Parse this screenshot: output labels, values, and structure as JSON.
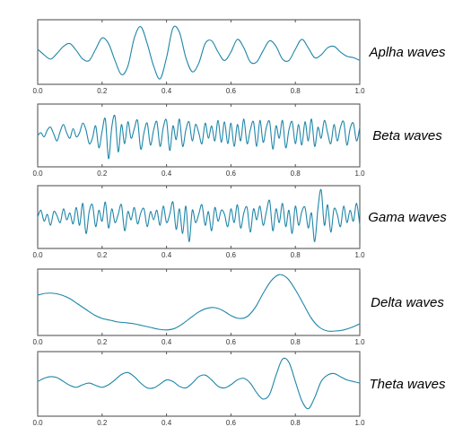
{
  "chart_data": [
    {
      "type": "line",
      "label": "Aplha waves",
      "color": "#1f86a8",
      "xlim": [
        0,
        1
      ],
      "x_ticks": [
        "0.0",
        "0.2",
        "0.4",
        "0.6",
        "0.8",
        "1.0"
      ],
      "x": [
        0.0,
        0.02,
        0.04,
        0.06,
        0.08,
        0.1,
        0.12,
        0.14,
        0.16,
        0.18,
        0.2,
        0.22,
        0.24,
        0.26,
        0.28,
        0.3,
        0.32,
        0.34,
        0.36,
        0.38,
        0.4,
        0.42,
        0.44,
        0.46,
        0.48,
        0.5,
        0.52,
        0.54,
        0.56,
        0.58,
        0.6,
        0.62,
        0.64,
        0.66,
        0.68,
        0.7,
        0.72,
        0.74,
        0.76,
        0.78,
        0.8,
        0.82,
        0.84,
        0.86,
        0.88,
        0.9,
        0.92,
        0.94,
        0.96,
        0.98,
        1.0
      ],
      "y": [
        0.1,
        -0.1,
        -0.25,
        -0.05,
        0.2,
        0.3,
        0.05,
        -0.25,
        -0.3,
        0.1,
        0.5,
        0.3,
        -0.3,
        -0.8,
        -0.5,
        0.5,
        0.9,
        0.3,
        -0.5,
        -0.95,
        -0.2,
        0.85,
        0.7,
        -0.2,
        -0.7,
        -0.4,
        0.3,
        0.4,
        0.0,
        -0.3,
        0.0,
        0.45,
        0.15,
        -0.35,
        -0.35,
        0.05,
        0.4,
        0.2,
        -0.25,
        -0.3,
        0.1,
        0.45,
        0.15,
        -0.2,
        -0.1,
        0.15,
        0.2,
        0.0,
        -0.15,
        -0.2,
        -0.3
      ],
      "ylim": [
        -1.05,
        1.05
      ]
    },
    {
      "type": "line",
      "label": "Beta waves",
      "color": "#1f86a8",
      "xlim": [
        0,
        1
      ],
      "x_ticks": [
        "0.0",
        "0.2",
        "0.4",
        "0.6",
        "0.8",
        "1.0"
      ],
      "x": [
        0.0,
        0.01,
        0.02,
        0.03,
        0.04,
        0.05,
        0.06,
        0.07,
        0.08,
        0.09,
        0.1,
        0.11,
        0.12,
        0.13,
        0.14,
        0.15,
        0.16,
        0.17,
        0.18,
        0.19,
        0.2,
        0.21,
        0.22,
        0.23,
        0.24,
        0.25,
        0.26,
        0.27,
        0.28,
        0.29,
        0.3,
        0.31,
        0.32,
        0.33,
        0.34,
        0.35,
        0.36,
        0.37,
        0.38,
        0.39,
        0.4,
        0.41,
        0.42,
        0.43,
        0.44,
        0.45,
        0.46,
        0.47,
        0.48,
        0.49,
        0.5,
        0.51,
        0.52,
        0.53,
        0.54,
        0.55,
        0.56,
        0.57,
        0.58,
        0.59,
        0.6,
        0.61,
        0.62,
        0.63,
        0.64,
        0.65,
        0.66,
        0.67,
        0.68,
        0.69,
        0.7,
        0.71,
        0.72,
        0.73,
        0.74,
        0.75,
        0.76,
        0.77,
        0.78,
        0.79,
        0.8,
        0.81,
        0.82,
        0.83,
        0.84,
        0.85,
        0.86,
        0.87,
        0.88,
        0.89,
        0.9,
        0.91,
        0.92,
        0.93,
        0.94,
        0.95,
        0.96,
        0.97,
        0.98,
        0.99,
        1.0
      ],
      "y": [
        0.0,
        0.1,
        -0.05,
        0.2,
        0.3,
        0.05,
        -0.2,
        0.15,
        0.4,
        0.1,
        -0.1,
        0.25,
        -0.05,
        0.1,
        0.45,
        0.2,
        -0.3,
        -0.1,
        0.35,
        -0.45,
        0.15,
        0.6,
        -0.85,
        0.3,
        0.7,
        -0.6,
        0.4,
        -0.3,
        0.5,
        -0.1,
        0.25,
        0.55,
        -0.5,
        0.1,
        0.45,
        -0.35,
        0.2,
        0.5,
        -0.4,
        0.3,
        0.55,
        -0.55,
        0.35,
        -0.15,
        0.6,
        -0.4,
        0.2,
        0.5,
        -0.2,
        0.4,
        0.1,
        -0.3,
        0.45,
        -0.1,
        0.35,
        -0.2,
        0.55,
        -0.25,
        0.5,
        -0.3,
        0.45,
        -0.4,
        0.4,
        -0.2,
        0.6,
        -0.3,
        0.2,
        0.5,
        -0.4,
        0.55,
        -0.25,
        0.3,
        0.5,
        -0.5,
        0.35,
        -0.1,
        0.55,
        -0.45,
        0.2,
        0.5,
        -0.3,
        0.4,
        -0.35,
        0.5,
        -0.2,
        0.6,
        -0.4,
        0.3,
        -0.1,
        0.55,
        0.1,
        -0.3,
        0.4,
        -0.2,
        0.3,
        0.5,
        -0.35,
        0.25,
        0.45,
        -0.2,
        0.3
      ],
      "ylim": [
        -1.05,
        1.05
      ]
    },
    {
      "type": "line",
      "label": "Gama waves",
      "color": "#1f86a8",
      "xlim": [
        0,
        1
      ],
      "x_ticks": [
        "0.0",
        "0.2",
        "0.4",
        "0.6",
        "0.8",
        "1.0"
      ],
      "x": [
        0.0,
        0.01,
        0.02,
        0.03,
        0.04,
        0.05,
        0.06,
        0.07,
        0.08,
        0.09,
        0.1,
        0.11,
        0.12,
        0.13,
        0.14,
        0.15,
        0.16,
        0.17,
        0.18,
        0.19,
        0.2,
        0.21,
        0.22,
        0.23,
        0.24,
        0.25,
        0.26,
        0.27,
        0.28,
        0.29,
        0.3,
        0.31,
        0.32,
        0.33,
        0.34,
        0.35,
        0.36,
        0.37,
        0.38,
        0.39,
        0.4,
        0.41,
        0.42,
        0.43,
        0.44,
        0.45,
        0.46,
        0.47,
        0.48,
        0.49,
        0.5,
        0.51,
        0.52,
        0.53,
        0.54,
        0.55,
        0.56,
        0.57,
        0.58,
        0.59,
        0.6,
        0.61,
        0.62,
        0.63,
        0.64,
        0.65,
        0.66,
        0.67,
        0.68,
        0.69,
        0.7,
        0.71,
        0.72,
        0.73,
        0.74,
        0.75,
        0.76,
        0.77,
        0.78,
        0.79,
        0.8,
        0.81,
        0.82,
        0.83,
        0.84,
        0.85,
        0.86,
        0.87,
        0.88,
        0.89,
        0.9,
        0.91,
        0.92,
        0.93,
        0.94,
        0.95,
        0.96,
        0.97,
        0.98,
        0.99,
        1.0
      ],
      "y": [
        0.0,
        0.25,
        -0.15,
        0.1,
        -0.3,
        0.2,
        0.05,
        -0.2,
        0.3,
        -0.1,
        0.15,
        -0.25,
        0.35,
        -0.3,
        0.5,
        -0.6,
        0.2,
        0.45,
        -0.35,
        0.25,
        -0.15,
        0.55,
        -0.4,
        0.3,
        -0.2,
        0.1,
        0.45,
        -0.5,
        0.2,
        -0.1,
        0.35,
        -0.25,
        0.15,
        0.3,
        -0.35,
        0.2,
        -0.1,
        0.25,
        -0.3,
        0.4,
        -0.2,
        0.1,
        0.55,
        -0.45,
        0.3,
        -0.6,
        0.4,
        -0.9,
        0.25,
        -0.2,
        0.1,
        0.45,
        -0.3,
        0.2,
        -0.5,
        0.35,
        -0.15,
        0.25,
        0.1,
        -0.35,
        0.3,
        -0.2,
        0.45,
        -0.4,
        0.15,
        0.35,
        -0.55,
        0.3,
        -0.1,
        0.4,
        -0.3,
        0.2,
        0.6,
        -0.5,
        0.3,
        -0.2,
        0.5,
        -0.35,
        0.25,
        -0.6,
        0.4,
        -0.3,
        0.2,
        0.35,
        -0.4,
        0.15,
        -0.9,
        0.3,
        1.0,
        -0.3,
        0.45,
        -0.55,
        0.3,
        0.1,
        -0.35,
        0.4,
        -0.2,
        0.25,
        -0.15,
        0.5,
        -0.3
      ],
      "ylim": [
        -1.05,
        1.05
      ]
    },
    {
      "type": "line",
      "label": "Delta waves",
      "color": "#1f86a8",
      "xlim": [
        0,
        1
      ],
      "x_ticks": [
        "0.0",
        "0.2",
        "0.4",
        "0.6",
        "0.8",
        "1.0"
      ],
      "x": [
        0.0,
        0.025,
        0.05,
        0.075,
        0.1,
        0.125,
        0.15,
        0.175,
        0.2,
        0.225,
        0.25,
        0.275,
        0.3,
        0.325,
        0.35,
        0.375,
        0.4,
        0.425,
        0.45,
        0.475,
        0.5,
        0.525,
        0.55,
        0.575,
        0.6,
        0.625,
        0.65,
        0.675,
        0.7,
        0.725,
        0.75,
        0.775,
        0.8,
        0.825,
        0.85,
        0.875,
        0.9,
        0.925,
        0.95,
        0.975,
        1.0
      ],
      "y": [
        0.15,
        0.2,
        0.2,
        0.15,
        0.05,
        -0.1,
        -0.25,
        -0.4,
        -0.5,
        -0.55,
        -0.6,
        -0.62,
        -0.65,
        -0.7,
        -0.75,
        -0.8,
        -0.82,
        -0.78,
        -0.65,
        -0.48,
        -0.32,
        -0.22,
        -0.2,
        -0.28,
        -0.42,
        -0.5,
        -0.45,
        -0.2,
        0.2,
        0.55,
        0.72,
        0.62,
        0.3,
        -0.1,
        -0.5,
        -0.75,
        -0.85,
        -0.85,
        -0.82,
        -0.75,
        -0.65
      ],
      "ylim": [
        -0.9,
        0.8
      ]
    },
    {
      "type": "line",
      "label": "Theta waves",
      "color": "#1f86a8",
      "xlim": [
        0,
        1
      ],
      "x_ticks": [
        "0.0",
        "0.2",
        "0.4",
        "0.6",
        "0.8",
        "1.0"
      ],
      "x": [
        0.0,
        0.02,
        0.04,
        0.06,
        0.08,
        0.1,
        0.12,
        0.14,
        0.16,
        0.18,
        0.2,
        0.22,
        0.24,
        0.26,
        0.28,
        0.3,
        0.32,
        0.34,
        0.36,
        0.38,
        0.4,
        0.42,
        0.44,
        0.46,
        0.48,
        0.5,
        0.52,
        0.54,
        0.56,
        0.58,
        0.6,
        0.62,
        0.64,
        0.66,
        0.68,
        0.7,
        0.72,
        0.74,
        0.76,
        0.78,
        0.8,
        0.82,
        0.84,
        0.86,
        0.88,
        0.9,
        0.92,
        0.94,
        0.96,
        0.98,
        1.0
      ],
      "y": [
        0.0,
        0.1,
        0.15,
        0.12,
        0.0,
        -0.12,
        -0.18,
        -0.1,
        -0.05,
        -0.12,
        -0.18,
        -0.1,
        0.05,
        0.22,
        0.28,
        0.15,
        -0.05,
        -0.2,
        -0.2,
        -0.08,
        0.05,
        0.0,
        -0.15,
        -0.2,
        -0.05,
        0.15,
        0.2,
        0.05,
        -0.15,
        -0.2,
        -0.1,
        0.05,
        0.1,
        -0.05,
        -0.35,
        -0.55,
        -0.4,
        0.2,
        0.7,
        0.6,
        0.0,
        -0.6,
        -0.85,
        -0.5,
        0.0,
        0.2,
        0.25,
        0.15,
        0.05,
        0.0,
        -0.05
      ],
      "ylim": [
        -1.0,
        0.85
      ]
    }
  ]
}
